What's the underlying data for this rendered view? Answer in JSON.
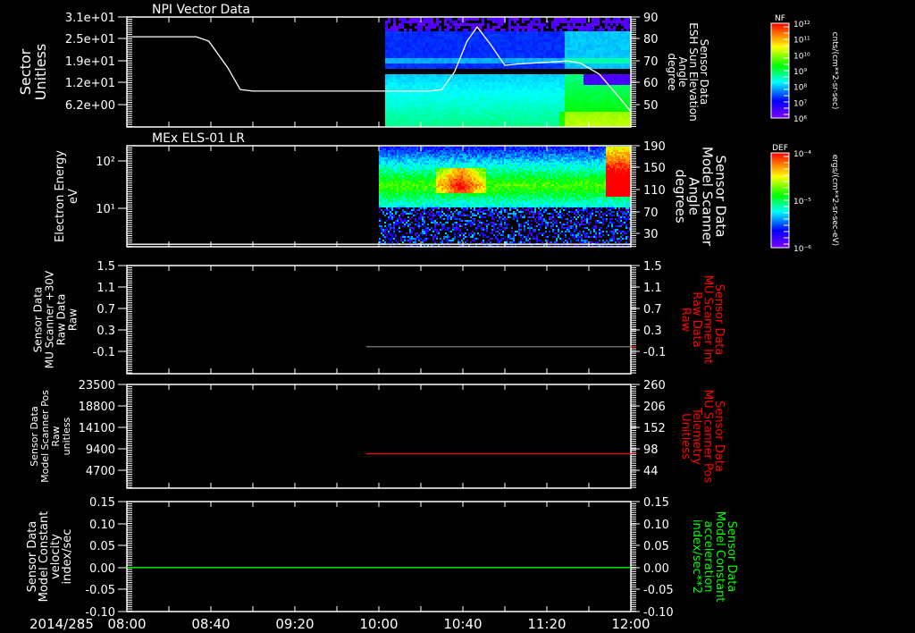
{
  "chart_data": [
    {
      "type": "heatmap",
      "title": "NPI Vector Data",
      "ylabel": [
        "Sector",
        "Unitless"
      ],
      "yticks": [
        "3.1e+01",
        "2.5e+01",
        "1.9e+01",
        "1.2e+01",
        "6.2e+00"
      ],
      "ylim": [
        0,
        31
      ],
      "y2label": [
        "Sensor Data",
        "ESH Sun Elevation",
        "Angle",
        "degree"
      ],
      "y2ticks": [
        "90",
        "80",
        "70",
        "60",
        "50"
      ],
      "y2lim": [
        40,
        90
      ],
      "line_series": {
        "name": "ESH Sun Elevation Angle",
        "color": "#ffffff",
        "axis": "right",
        "x_hours": [
          8.0,
          8.55,
          8.65,
          8.8,
          8.9,
          9.0,
          10.4,
          10.5,
          10.6,
          10.7,
          10.78,
          10.88,
          11.0,
          11.1,
          11.5,
          11.6,
          11.75,
          11.9,
          12.0
        ],
        "y": [
          81,
          81,
          79,
          67,
          57,
          56.3,
          56.3,
          57,
          65,
          79,
          85.5,
          78,
          68,
          68.6,
          70,
          69,
          64,
          54,
          47
        ]
      },
      "spectrogram_start_hours": 10.0,
      "colorbar": {
        "label": "NF",
        "ticks": [
          "10¹²",
          "10¹¹",
          "10¹⁰",
          "10⁹",
          "10⁸",
          "10⁷",
          "10⁶"
        ],
        "units": "cnts/(cm**2-sr-sec)"
      }
    },
    {
      "type": "heatmap",
      "title": "MEx ELS-01 LR",
      "ylabel": [
        "Electron Energy",
        "eV"
      ],
      "yticks": [
        "10²",
        "10¹"
      ],
      "ylim_log10": [
        0.2,
        2.33
      ],
      "y2label": [
        "Sensor Data",
        "Model Scanner",
        "Angle",
        "degrees"
      ],
      "y2ticks": [
        "190",
        "150",
        "110",
        "70",
        "30"
      ],
      "y2lim": [
        -10,
        190
      ],
      "line_series": {
        "name": "Model Scanner Angle",
        "color": "#ffffff",
        "axis": "right",
        "x_hours": [
          8.0,
          12.0
        ],
        "y": [
          -5,
          -5
        ]
      },
      "spectrogram_start_hours": 9.98,
      "colorbar": {
        "label": "DEF",
        "ticks": [
          "10⁻⁴",
          "10⁻⁵",
          "10⁻⁶"
        ],
        "units": "ergs/(cm**2-sr-sec-eV)"
      }
    },
    {
      "type": "line",
      "ylabel": [
        "Sensor Data",
        "MU Scanner +30V",
        "Raw Data",
        "Raw"
      ],
      "yticks": [
        "1.5",
        "1.1",
        "0.7",
        "0.3",
        "-0.1"
      ],
      "ylim": [
        -0.5,
        1.5
      ],
      "y2label": [
        "Sensor Data",
        "MU Scanner Int",
        "Raw Data",
        "Raw"
      ],
      "y2label_color": "#ff0000",
      "y2ticks": [
        "1.5",
        "1.1",
        "0.7",
        "0.3",
        "-0.1"
      ],
      "y2lim": [
        -0.5,
        1.5
      ],
      "line_series": {
        "name": "MU Scanner Int",
        "color": "#808080",
        "axis": "right",
        "x_hours": [
          9.9,
          12.0
        ],
        "y": [
          0.0,
          0.0
        ]
      }
    },
    {
      "type": "line",
      "ylabel": [
        "Sensor Data",
        "Model Scanner Pos",
        "Raw",
        "unitless"
      ],
      "yticks": [
        "23500",
        "18800",
        "14100",
        "9400",
        "4700"
      ],
      "ylim": [
        900,
        23500
      ],
      "y2label": [
        "Sensor Data",
        "MU Scanner Pos",
        "Telemetry",
        "Unitless"
      ],
      "y2label_color": "#ff0000",
      "y2ticks": [
        "260",
        "206",
        "152",
        "98",
        "44"
      ],
      "y2lim": [
        0,
        260
      ],
      "line_series": {
        "name": "MU Scanner Pos Telemetry",
        "color": "#ff0000",
        "axis": "right",
        "x_hours": [
          9.9,
          12.0
        ],
        "y": [
          86,
          86
        ]
      }
    },
    {
      "type": "line",
      "ylabel": [
        "Sensor Data",
        "Model Constant",
        "velocity",
        "index/sec"
      ],
      "yticks": [
        "0.15",
        "0.10",
        "0.05",
        "0.00",
        "-0.05",
        "-0.10"
      ],
      "ylim": [
        -0.1,
        0.15
      ],
      "y2label": [
        "Sensor Data",
        "Model Constant",
        "acceleration",
        "index/sec**2"
      ],
      "y2label_color": "#00ff00",
      "y2ticks": [
        "0.15",
        "0.10",
        "0.05",
        "0.00",
        "-0.05",
        "-0.10"
      ],
      "y2lim": [
        -0.1,
        0.15
      ],
      "line_series": {
        "name": "Model Constant",
        "color": "#00ff00",
        "axis": "right",
        "x_hours": [
          8.0,
          12.0
        ],
        "y": [
          0.0,
          0.0
        ]
      }
    }
  ],
  "time_axis": {
    "date": "2014/285",
    "labels": [
      "08:00",
      "08:40",
      "09:20",
      "10:00",
      "10:40",
      "11:20",
      "12:00"
    ],
    "start_hours": 8,
    "end_hours": 12
  }
}
